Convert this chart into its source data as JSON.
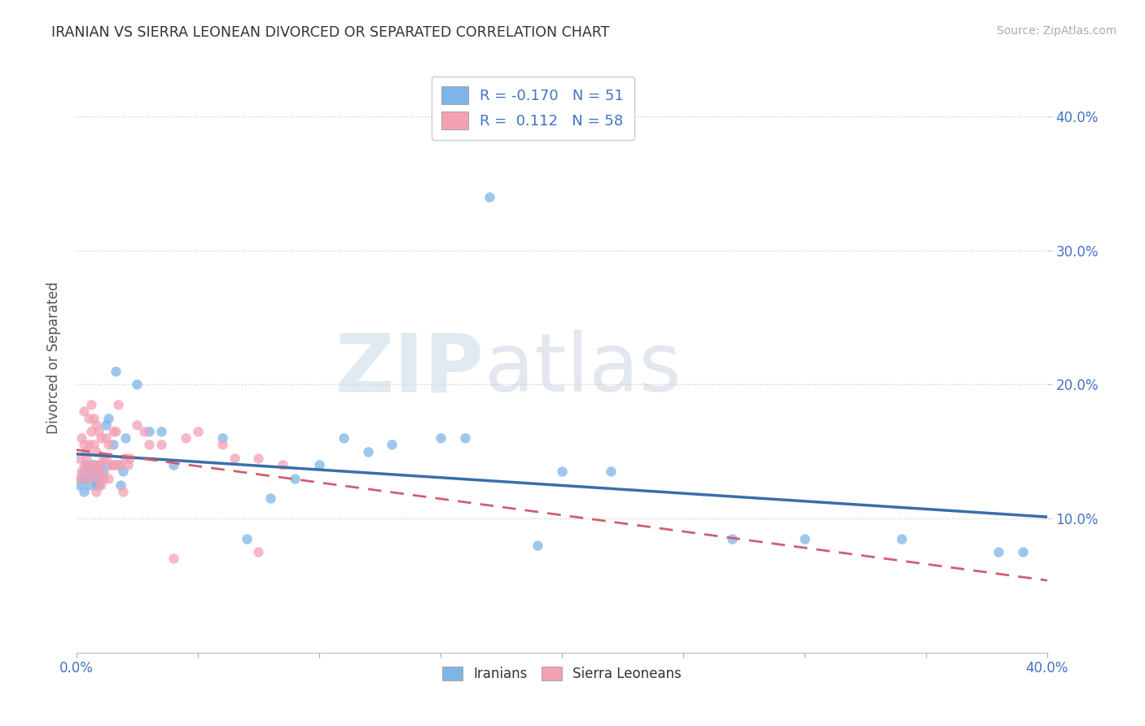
{
  "title": "IRANIAN VS SIERRA LEONEAN DIVORCED OR SEPARATED CORRELATION CHART",
  "source": "Source: ZipAtlas.com",
  "ylabel": "Divorced or Separated",
  "xlim": [
    0.0,
    0.4
  ],
  "ylim": [
    0.0,
    0.44
  ],
  "yticks": [
    0.1,
    0.2,
    0.3,
    0.4
  ],
  "ytick_labels": [
    "10.0%",
    "20.0%",
    "30.0%",
    "40.0%"
  ],
  "xticks": [
    0.0,
    0.05,
    0.1,
    0.15,
    0.2,
    0.25,
    0.3,
    0.35,
    0.4
  ],
  "iranian_color": "#7eb5e8",
  "sierra_color": "#f4a0b5",
  "iranian_line_color": "#3a6eaa",
  "sierra_line_color": "#d06070",
  "iranian_R": -0.17,
  "iranian_N": 51,
  "sierra_R": 0.112,
  "sierra_N": 58,
  "watermark_zip": "ZIP",
  "watermark_atlas": "atlas",
  "legend_label_iranian": "Iranians",
  "legend_label_sierra": "Sierra Leoneans",
  "iran_x": [
    0.001,
    0.002,
    0.003,
    0.003,
    0.004,
    0.004,
    0.005,
    0.005,
    0.006,
    0.006,
    0.007,
    0.007,
    0.008,
    0.008,
    0.009,
    0.009,
    0.01,
    0.01,
    0.011,
    0.012,
    0.013,
    0.014,
    0.015,
    0.016,
    0.017,
    0.018,
    0.019,
    0.02,
    0.025,
    0.03,
    0.035,
    0.04,
    0.06,
    0.07,
    0.08,
    0.09,
    0.1,
    0.11,
    0.12,
    0.13,
    0.15,
    0.16,
    0.17,
    0.19,
    0.2,
    0.22,
    0.27,
    0.3,
    0.34,
    0.38,
    0.39
  ],
  "iran_y": [
    0.125,
    0.13,
    0.12,
    0.135,
    0.14,
    0.13,
    0.125,
    0.135,
    0.13,
    0.14,
    0.135,
    0.14,
    0.125,
    0.13,
    0.135,
    0.125,
    0.13,
    0.14,
    0.135,
    0.17,
    0.175,
    0.14,
    0.155,
    0.21,
    0.14,
    0.125,
    0.135,
    0.16,
    0.2,
    0.165,
    0.165,
    0.14,
    0.16,
    0.085,
    0.115,
    0.13,
    0.14,
    0.16,
    0.15,
    0.155,
    0.16,
    0.16,
    0.34,
    0.08,
    0.135,
    0.135,
    0.085,
    0.085,
    0.085,
    0.075,
    0.075
  ],
  "sierra_x": [
    0.001,
    0.001,
    0.002,
    0.002,
    0.003,
    0.003,
    0.003,
    0.004,
    0.004,
    0.004,
    0.005,
    0.005,
    0.005,
    0.006,
    0.006,
    0.006,
    0.007,
    0.007,
    0.007,
    0.008,
    0.008,
    0.008,
    0.008,
    0.009,
    0.009,
    0.009,
    0.01,
    0.01,
    0.01,
    0.011,
    0.011,
    0.012,
    0.012,
    0.013,
    0.013,
    0.014,
    0.015,
    0.015,
    0.016,
    0.016,
    0.017,
    0.018,
    0.019,
    0.02,
    0.021,
    0.022,
    0.025,
    0.028,
    0.03,
    0.035,
    0.04,
    0.045,
    0.05,
    0.06,
    0.065,
    0.075,
    0.085,
    0.075
  ],
  "sierra_y": [
    0.145,
    0.13,
    0.16,
    0.135,
    0.18,
    0.155,
    0.14,
    0.15,
    0.135,
    0.145,
    0.175,
    0.155,
    0.13,
    0.185,
    0.165,
    0.14,
    0.175,
    0.155,
    0.135,
    0.17,
    0.15,
    0.14,
    0.12,
    0.165,
    0.14,
    0.13,
    0.16,
    0.135,
    0.125,
    0.145,
    0.13,
    0.16,
    0.145,
    0.155,
    0.13,
    0.14,
    0.165,
    0.14,
    0.165,
    0.14,
    0.185,
    0.14,
    0.12,
    0.145,
    0.14,
    0.145,
    0.17,
    0.165,
    0.155,
    0.155,
    0.07,
    0.16,
    0.165,
    0.155,
    0.145,
    0.145,
    0.14,
    0.075
  ]
}
